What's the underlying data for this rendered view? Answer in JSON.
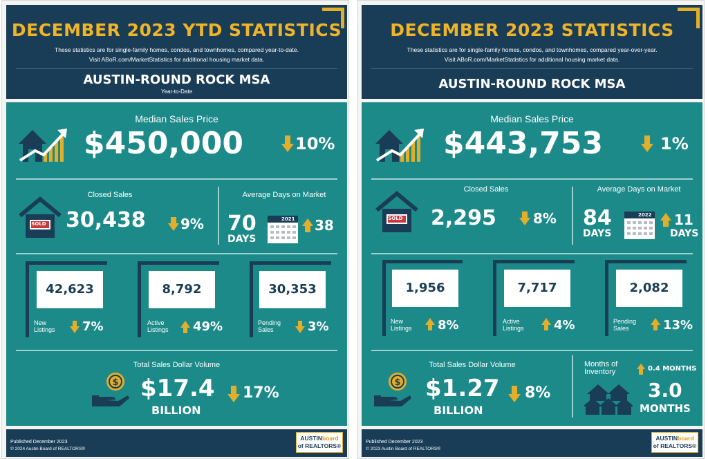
{
  "colors": {
    "navy": "#1a3d57",
    "teal": "#1d8a8a",
    "gold": "#e3ae2a"
  },
  "left": {
    "title": "DECEMBER 2023 YTD STATISTICS",
    "desc1": "These statistics are for single-family homes, condos, and townhomes, compared year-to-date.",
    "desc2": "Visit ABoR.com/MarketStatistics for additional housing market data.",
    "msa": "AUSTIN-ROUND ROCK MSA",
    "sub": "Year-to-Date",
    "median_label": "Median Sales Price",
    "median_value": "$450,000",
    "median_change": "10%",
    "closed_label": "Closed Sales",
    "closed_value": "30,438",
    "closed_change": "9%",
    "dom_label": "Average Days on Market",
    "dom_value": "70",
    "dom_unit": "DAYS",
    "dom_year": "2021",
    "dom_change": "38",
    "new_value": "42,623",
    "new_label1": "New",
    "new_label2": "Listings",
    "new_change": "7%",
    "active_value": "8,792",
    "active_label1": "Active",
    "active_label2": "Listings",
    "active_change": "49%",
    "pending_value": "30,353",
    "pending_label1": "Pending",
    "pending_label2": "Sales",
    "pending_change": "3%",
    "volume_label": "Total Sales Dollar Volume",
    "volume_value": "$17.4",
    "volume_unit": "BILLION",
    "volume_change": "17%",
    "published": "Published December 2023",
    "copyright": "© 2024 Austin Board of REALTORS®",
    "logo1": "AUSTIN",
    "logo2": "board",
    "logo3": "of REALTORS®",
    "sold": "SOLD"
  },
  "right": {
    "title": "DECEMBER 2023 STATISTICS",
    "desc1": "These statistics are for single-family homes, condos, and townhomes, compared year-over-year.",
    "desc2": "Visit ABoR.com/MarketStatistics for additional housing market data.",
    "msa": "AUSTIN-ROUND ROCK MSA",
    "median_label": "Median Sales Price",
    "median_value": "$443,753",
    "median_change": "1%",
    "closed_label": "Closed Sales",
    "closed_value": "2,295",
    "closed_change": "8%",
    "dom_label": "Average Days on Market",
    "dom_value": "84",
    "dom_unit": "DAYS",
    "dom_year": "2022",
    "dom_change": "11",
    "dom_change_unit": "DAYS",
    "new_value": "1,956",
    "new_label1": "New",
    "new_label2": "Listings",
    "new_change": "8%",
    "active_value": "7,717",
    "active_label1": "Active",
    "active_label2": "Listings",
    "active_change": "4%",
    "pending_value": "2,082",
    "pending_label1": "Pending",
    "pending_label2": "Sales",
    "pending_change": "13%",
    "volume_label": "Total Sales Dollar Volume",
    "volume_value": "$1.27",
    "volume_unit": "BILLION",
    "volume_change": "8%",
    "moi_label1": "Months of",
    "moi_label2": "Inventory",
    "moi_change": "0.4 MONTHS",
    "moi_value": "3.0",
    "moi_unit": "MONTHS",
    "published": "Published December 2023",
    "copyright": "© 2023 Austin Board of REALTORS®",
    "logo1": "AUSTIN",
    "logo2": "board",
    "logo3": "of REALTORS®",
    "sold": "SOLD"
  }
}
